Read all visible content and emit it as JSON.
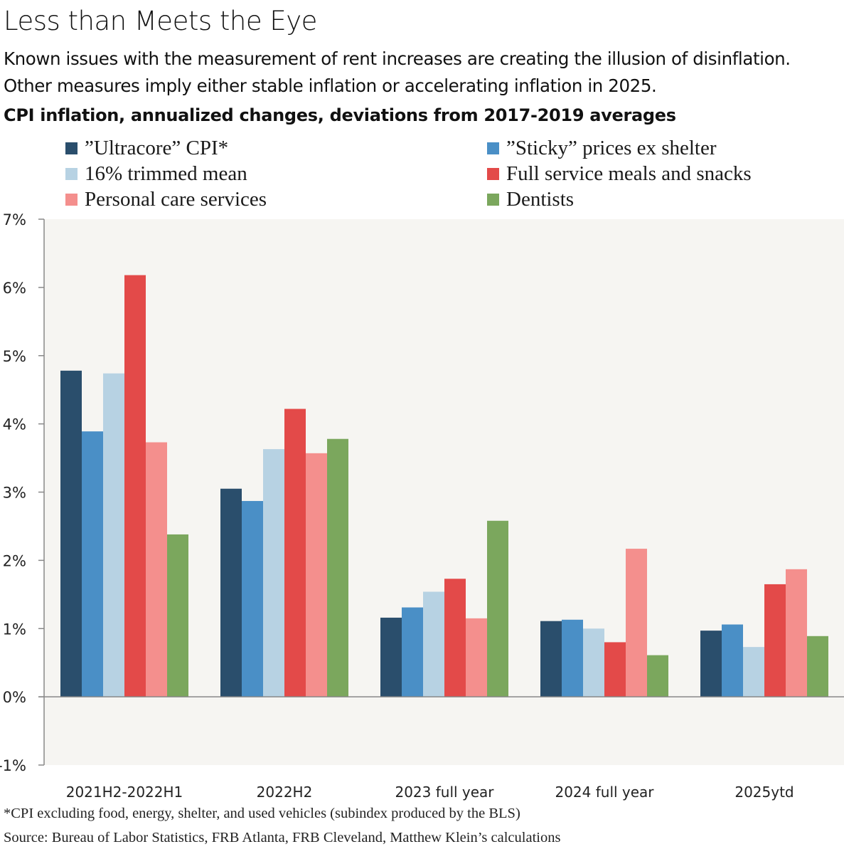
{
  "header": {
    "title": "Less than Meets the Eye",
    "subtitle": "Known issues with the measurement of rent increases are creating the illusion of disinflation. Other measures imply either stable inflation or accelerating inflation in 2025.",
    "chart_heading": "CPI inflation, annualized changes, deviations from 2017-2019 averages"
  },
  "footer": {
    "note": "*CPI excluding food, energy, shelter, and used vehicles (subindex produced by the BLS)",
    "source": "Source: Bureau of Labor Statistics, FRB Atlanta, FRB Cleveland, Matthew Klein’s calculations"
  },
  "colors": {
    "plot_background": "#f6f5f2",
    "axis": "#888888"
  },
  "chart_data": {
    "type": "bar",
    "title": "CPI inflation, annualized changes, deviations from 2017-2019 averages",
    "xlabel": "",
    "ylabel": "",
    "ylim": [
      -1,
      7
    ],
    "yticks": [
      7,
      6,
      5,
      4,
      3,
      2,
      1,
      0,
      -1
    ],
    "ytick_labels": [
      "7%",
      "6%",
      "5%",
      "4%",
      "3%",
      "2%",
      "1%",
      "0%",
      "-1%"
    ],
    "grid": false,
    "legend_position": "top",
    "categories": [
      "2021H2-2022H1",
      "2022H2",
      "2023 full year",
      "2024 full year",
      "2025ytd"
    ],
    "series": [
      {
        "name": "”Ultracore” CPI*",
        "color": "#2a4e6c",
        "values": [
          4.78,
          3.05,
          1.16,
          1.11,
          0.97
        ]
      },
      {
        "name": "”Sticky” prices ex shelter",
        "color": "#4a8fc6",
        "values": [
          3.89,
          2.87,
          1.31,
          1.13,
          1.06
        ]
      },
      {
        "name": "16% trimmed mean",
        "color": "#b7d2e3",
        "values": [
          4.74,
          3.63,
          1.54,
          1.0,
          0.73
        ]
      },
      {
        "name": "Full service meals and snacks",
        "color": "#e34a49",
        "values": [
          6.18,
          4.22,
          1.73,
          0.8,
          1.65
        ]
      },
      {
        "name": "Personal care services",
        "color": "#f48f8d",
        "values": [
          3.73,
          3.57,
          1.15,
          2.17,
          1.87
        ]
      },
      {
        "name": "Dentists",
        "color": "#7ba75d",
        "values": [
          2.38,
          3.78,
          2.58,
          0.61,
          0.89
        ]
      }
    ]
  }
}
